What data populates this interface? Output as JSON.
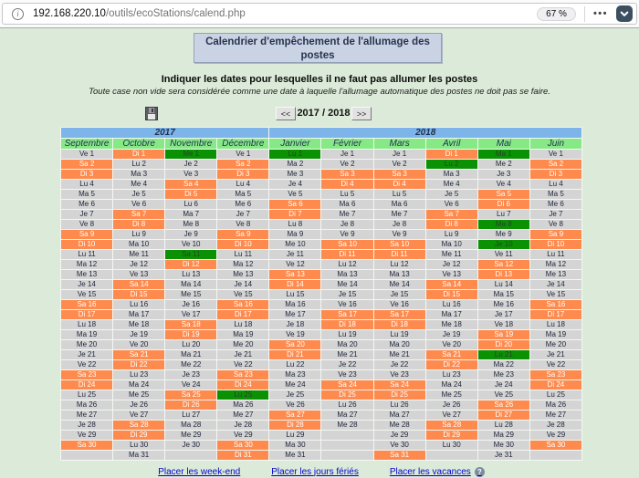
{
  "browser": {
    "url_domain": "192.168.220.10",
    "url_path": "/outils/ecoStations/calend.php",
    "zoom_level": "67 %",
    "menu_dots": "•••",
    "info_glyph": "i"
  },
  "page": {
    "title": "Calendrier d'empêchement de l'allumage des postes",
    "instruction_bold": "Indiquer les dates pour lesquelles il ne faut pas allumer les postes",
    "instruction_italic": "Toute case non vide sera considérée comme une date à laquelle l'allumage automatique des postes ne doit pas se faire.",
    "nav": {
      "prev": "<<",
      "label": "2017 / 2018",
      "next": ">>"
    },
    "links": {
      "weekends": "Placer les week-end",
      "holidays": "Placer les jours fériés",
      "vacations": "Placer les vacances",
      "help_glyph": "?"
    }
  },
  "colors": {
    "page_bg": "#dcebd9",
    "year_header_bg": "#7db4e9",
    "month_header_bg": "#86e986",
    "normal_cell": "#d4d4d4",
    "weekend_cell": "#ff8a4d",
    "holiday_cell": "#0b9104",
    "table_border": "#333f5c",
    "link_blue": "#0000cc"
  },
  "calendar": {
    "year_groups": [
      {
        "label": "2017",
        "span": 4
      },
      {
        "label": "2018",
        "span": 6
      }
    ],
    "max_days": 31,
    "months": [
      {
        "name": "Septembre",
        "holidays": [],
        "days": [
          "Ve 1",
          "Sa 2",
          "Di 3",
          "Lu 4",
          "Ma 5",
          "Me 6",
          "Je 7",
          "Ve 8",
          "Sa 9",
          "Di 10",
          "Lu 11",
          "Ma 12",
          "Me 13",
          "Je 14",
          "Ve 15",
          "Sa 16",
          "Di 17",
          "Lu 18",
          "Ma 19",
          "Me 20",
          "Je 21",
          "Ve 22",
          "Sa 23",
          "Di 24",
          "Lu 25",
          "Ma 26",
          "Me 27",
          "Je 28",
          "Ve 29",
          "Sa 30"
        ]
      },
      {
        "name": "Octobre",
        "holidays": [],
        "days": [
          "Di 1",
          "Lu 2",
          "Ma 3",
          "Me 4",
          "Je 5",
          "Ve 6",
          "Sa 7",
          "Di 8",
          "Lu 9",
          "Ma 10",
          "Me 11",
          "Je 12",
          "Ve 13",
          "Sa 14",
          "Di 15",
          "Lu 16",
          "Ma 17",
          "Me 18",
          "Je 19",
          "Ve 20",
          "Sa 21",
          "Di 22",
          "Lu 23",
          "Ma 24",
          "Me 25",
          "Je 26",
          "Ve 27",
          "Sa 28",
          "Di 29",
          "Lu 30",
          "Ma 31"
        ]
      },
      {
        "name": "Novembre",
        "holidays": [
          1,
          11
        ],
        "days": [
          "Me 1",
          "Je 2",
          "Ve 3",
          "Sa 4",
          "Di 5",
          "Lu 6",
          "Ma 7",
          "Me 8",
          "Je 9",
          "Ve 10",
          "Sa 11",
          "Di 12",
          "Lu 13",
          "Ma 14",
          "Me 15",
          "Je 16",
          "Ve 17",
          "Sa 18",
          "Di 19",
          "Lu 20",
          "Ma 21",
          "Me 22",
          "Je 23",
          "Ve 24",
          "Sa 25",
          "Di 26",
          "Lu 27",
          "Ma 28",
          "Me 29",
          "Je 30"
        ]
      },
      {
        "name": "Décembre",
        "holidays": [
          25
        ],
        "days": [
          "Ve 1",
          "Sa 2",
          "Di 3",
          "Lu 4",
          "Ma 5",
          "Me 6",
          "Je 7",
          "Ve 8",
          "Sa 9",
          "Di 10",
          "Lu 11",
          "Ma 12",
          "Me 13",
          "Je 14",
          "Ve 15",
          "Sa 16",
          "Di 17",
          "Lu 18",
          "Ma 19",
          "Me 20",
          "Je 21",
          "Ve 22",
          "Sa 23",
          "Di 24",
          "Lu 25",
          "Ma 26",
          "Me 27",
          "Je 28",
          "Ve 29",
          "Sa 30",
          "Di 31"
        ]
      },
      {
        "name": "Janvier",
        "holidays": [
          1
        ],
        "days": [
          "Lu 1",
          "Ma 2",
          "Me 3",
          "Je 4",
          "Ve 5",
          "Sa 6",
          "Di 7",
          "Lu 8",
          "Ma 9",
          "Me 10",
          "Je 11",
          "Ve 12",
          "Sa 13",
          "Di 14",
          "Lu 15",
          "Ma 16",
          "Me 17",
          "Je 18",
          "Ve 19",
          "Sa 20",
          "Di 21",
          "Lu 22",
          "Ma 23",
          "Me 24",
          "Je 25",
          "Ve 26",
          "Sa 27",
          "Di 28",
          "Lu 29",
          "Ma 30",
          "Me 31"
        ]
      },
      {
        "name": "Février",
        "holidays": [],
        "days": [
          "Je 1",
          "Ve 2",
          "Sa 3",
          "Di 4",
          "Lu 5",
          "Ma 6",
          "Me 7",
          "Je 8",
          "Ve 9",
          "Sa 10",
          "Di 11",
          "Lu 12",
          "Ma 13",
          "Me 14",
          "Je 15",
          "Ve 16",
          "Sa 17",
          "Di 18",
          "Lu 19",
          "Ma 20",
          "Me 21",
          "Je 22",
          "Ve 23",
          "Sa 24",
          "Di 25",
          "Lu 26",
          "Ma 27",
          "Me 28"
        ]
      },
      {
        "name": "Mars",
        "holidays": [],
        "days": [
          "Je 1",
          "Ve 2",
          "Sa 3",
          "Di 4",
          "Lu 5",
          "Ma 6",
          "Me 7",
          "Je 8",
          "Ve 9",
          "Sa 10",
          "Di 11",
          "Lu 12",
          "Ma 13",
          "Me 14",
          "Je 15",
          "Ve 16",
          "Sa 17",
          "Di 18",
          "Lu 19",
          "Ma 20",
          "Me 21",
          "Je 22",
          "Ve 23",
          "Sa 24",
          "Di 25",
          "Lu 26",
          "Ma 27",
          "Me 28",
          "Je 29",
          "Ve 30",
          "Sa 31"
        ]
      },
      {
        "name": "Avril",
        "holidays": [
          2
        ],
        "days": [
          "Di 1",
          "Lu 2",
          "Ma 3",
          "Me 4",
          "Je 5",
          "Ve 6",
          "Sa 7",
          "Di 8",
          "Lu 9",
          "Ma 10",
          "Me 11",
          "Je 12",
          "Ve 13",
          "Sa 14",
          "Di 15",
          "Lu 16",
          "Ma 17",
          "Me 18",
          "Je 19",
          "Ve 20",
          "Sa 21",
          "Di 22",
          "Lu 23",
          "Ma 24",
          "Me 25",
          "Je 26",
          "Ve 27",
          "Sa 28",
          "Di 29",
          "Lu 30"
        ]
      },
      {
        "name": "Mai",
        "holidays": [
          1,
          8,
          10,
          21
        ],
        "days": [
          "Ma 1",
          "Me 2",
          "Je 3",
          "Ve 4",
          "Sa 5",
          "Di 6",
          "Lu 7",
          "Ma 8",
          "Me 9",
          "Je 10",
          "Ve 11",
          "Sa 12",
          "Di 13",
          "Lu 14",
          "Ma 15",
          "Me 16",
          "Je 17",
          "Ve 18",
          "Sa 19",
          "Di 20",
          "Lu 21",
          "Ma 22",
          "Me 23",
          "Je 24",
          "Ve 25",
          "Sa 26",
          "Di 27",
          "Lu 28",
          "Ma 29",
          "Me 30",
          "Je 31"
        ]
      },
      {
        "name": "Juin",
        "holidays": [],
        "days": [
          "Ve 1",
          "Sa 2",
          "Di 3",
          "Lu 4",
          "Ma 5",
          "Me 6",
          "Je 7",
          "Ve 8",
          "Sa 9",
          "Di 10",
          "Lu 11",
          "Ma 12",
          "Me 13",
          "Je 14",
          "Ve 15",
          "Sa 16",
          "Di 17",
          "Lu 18",
          "Ma 19",
          "Me 20",
          "Je 21",
          "Ve 22",
          "Sa 23",
          "Di 24",
          "Lu 25",
          "Ma 26",
          "Me 27",
          "Je 28",
          "Ve 29",
          "Sa 30"
        ]
      }
    ]
  }
}
